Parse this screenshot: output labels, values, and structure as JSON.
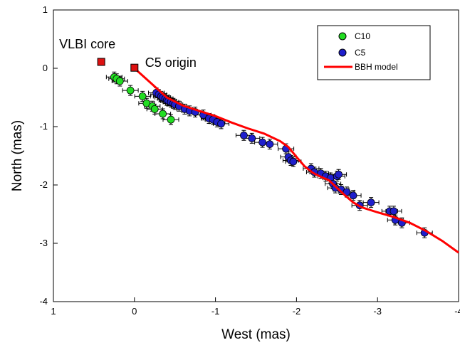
{
  "chart_data": {
    "type": "scatter",
    "xlabel": "West (mas)",
    "ylabel": "North (mas)",
    "xlim": [
      1,
      -4
    ],
    "ylim": [
      -4,
      1
    ],
    "xticks": [
      1,
      0,
      -1,
      -2,
      -3,
      -4
    ],
    "xtick_labels": [
      "1",
      "0",
      "-1",
      "-2",
      "-3",
      "-4"
    ],
    "yticks": [
      1,
      0,
      -1,
      -2,
      -3,
      -4
    ],
    "ytick_labels": [
      "1",
      "0",
      "-1",
      "-2",
      "-3",
      "-4"
    ],
    "grid": false,
    "legend_position": "top-right",
    "series": [
      {
        "name": "C10",
        "color": "#22dd22",
        "marker": "circle",
        "points": [
          {
            "x": 0.25,
            "y": -0.15
          },
          {
            "x": 0.22,
            "y": -0.18
          },
          {
            "x": 0.18,
            "y": -0.22
          },
          {
            "x": 0.05,
            "y": -0.38
          },
          {
            "x": -0.1,
            "y": -0.48
          },
          {
            "x": -0.15,
            "y": -0.6
          },
          {
            "x": -0.22,
            "y": -0.65
          },
          {
            "x": -0.25,
            "y": -0.7
          },
          {
            "x": -0.35,
            "y": -0.78
          },
          {
            "x": -0.45,
            "y": -0.88
          }
        ]
      },
      {
        "name": "C5",
        "color": "#1f1fcc",
        "marker": "circle",
        "points": [
          {
            "x": -0.27,
            "y": -0.42
          },
          {
            "x": -0.3,
            "y": -0.45
          },
          {
            "x": -0.33,
            "y": -0.48
          },
          {
            "x": -0.35,
            "y": -0.5
          },
          {
            "x": -0.38,
            "y": -0.52
          },
          {
            "x": -0.4,
            "y": -0.55
          },
          {
            "x": -0.42,
            "y": -0.56
          },
          {
            "x": -0.45,
            "y": -0.58
          },
          {
            "x": -0.48,
            "y": -0.6
          },
          {
            "x": -0.5,
            "y": -0.62
          },
          {
            "x": -0.55,
            "y": -0.65
          },
          {
            "x": -0.62,
            "y": -0.7
          },
          {
            "x": -0.68,
            "y": -0.73
          },
          {
            "x": -0.75,
            "y": -0.75
          },
          {
            "x": -0.85,
            "y": -0.8
          },
          {
            "x": -0.92,
            "y": -0.86
          },
          {
            "x": -0.97,
            "y": -0.88
          },
          {
            "x": -1.02,
            "y": -0.92
          },
          {
            "x": -1.07,
            "y": -0.95
          },
          {
            "x": -1.35,
            "y": -1.15
          },
          {
            "x": -1.45,
            "y": -1.2
          },
          {
            "x": -1.58,
            "y": -1.27
          },
          {
            "x": -1.67,
            "y": -1.3
          },
          {
            "x": -1.87,
            "y": -1.38
          },
          {
            "x": -1.9,
            "y": -1.52
          },
          {
            "x": -1.93,
            "y": -1.58
          },
          {
            "x": -1.96,
            "y": -1.6
          },
          {
            "x": -2.18,
            "y": -1.72
          },
          {
            "x": -2.22,
            "y": -1.78
          },
          {
            "x": -2.3,
            "y": -1.8
          },
          {
            "x": -2.36,
            "y": -1.85
          },
          {
            "x": -2.42,
            "y": -1.88
          },
          {
            "x": -2.5,
            "y": -1.85
          },
          {
            "x": -2.52,
            "y": -1.82
          },
          {
            "x": -2.45,
            "y": -1.98
          },
          {
            "x": -2.48,
            "y": -2.05
          },
          {
            "x": -2.55,
            "y": -2.08
          },
          {
            "x": -2.62,
            "y": -2.12
          },
          {
            "x": -2.7,
            "y": -2.18
          },
          {
            "x": -2.78,
            "y": -2.35
          },
          {
            "x": -2.92,
            "y": -2.3
          },
          {
            "x": -3.15,
            "y": -2.45
          },
          {
            "x": -3.2,
            "y": -2.45
          },
          {
            "x": -3.22,
            "y": -2.6
          },
          {
            "x": -3.3,
            "y": -2.65
          },
          {
            "x": -3.58,
            "y": -2.82
          }
        ]
      },
      {
        "name": "BBH model",
        "color": "#ff0000",
        "type": "line",
        "points": [
          {
            "x": 0.0,
            "y": 0.0
          },
          {
            "x": -0.2,
            "y": -0.25
          },
          {
            "x": -0.4,
            "y": -0.5
          },
          {
            "x": -0.6,
            "y": -0.64
          },
          {
            "x": -0.8,
            "y": -0.73
          },
          {
            "x": -1.0,
            "y": -0.82
          },
          {
            "x": -1.2,
            "y": -0.93
          },
          {
            "x": -1.4,
            "y": -1.03
          },
          {
            "x": -1.6,
            "y": -1.12
          },
          {
            "x": -1.8,
            "y": -1.25
          },
          {
            "x": -1.9,
            "y": -1.35
          },
          {
            "x": -2.0,
            "y": -1.52
          },
          {
            "x": -2.1,
            "y": -1.68
          },
          {
            "x": -2.2,
            "y": -1.79
          },
          {
            "x": -2.3,
            "y": -1.86
          },
          {
            "x": -2.4,
            "y": -1.92
          },
          {
            "x": -2.5,
            "y": -2.05
          },
          {
            "x": -2.6,
            "y": -2.18
          },
          {
            "x": -2.7,
            "y": -2.3
          },
          {
            "x": -2.8,
            "y": -2.38
          },
          {
            "x": -3.0,
            "y": -2.47
          },
          {
            "x": -3.2,
            "y": -2.55
          },
          {
            "x": -3.4,
            "y": -2.65
          },
          {
            "x": -3.6,
            "y": -2.79
          },
          {
            "x": -3.8,
            "y": -2.96
          },
          {
            "x": -4.0,
            "y": -3.16
          }
        ]
      }
    ],
    "markers": [
      {
        "label": "VLBI core",
        "x": 0.41,
        "y": 0.11,
        "color": "#dd1111"
      },
      {
        "label": "C5 origin",
        "x": 0.0,
        "y": 0.01,
        "color": "#dd1111"
      }
    ]
  }
}
